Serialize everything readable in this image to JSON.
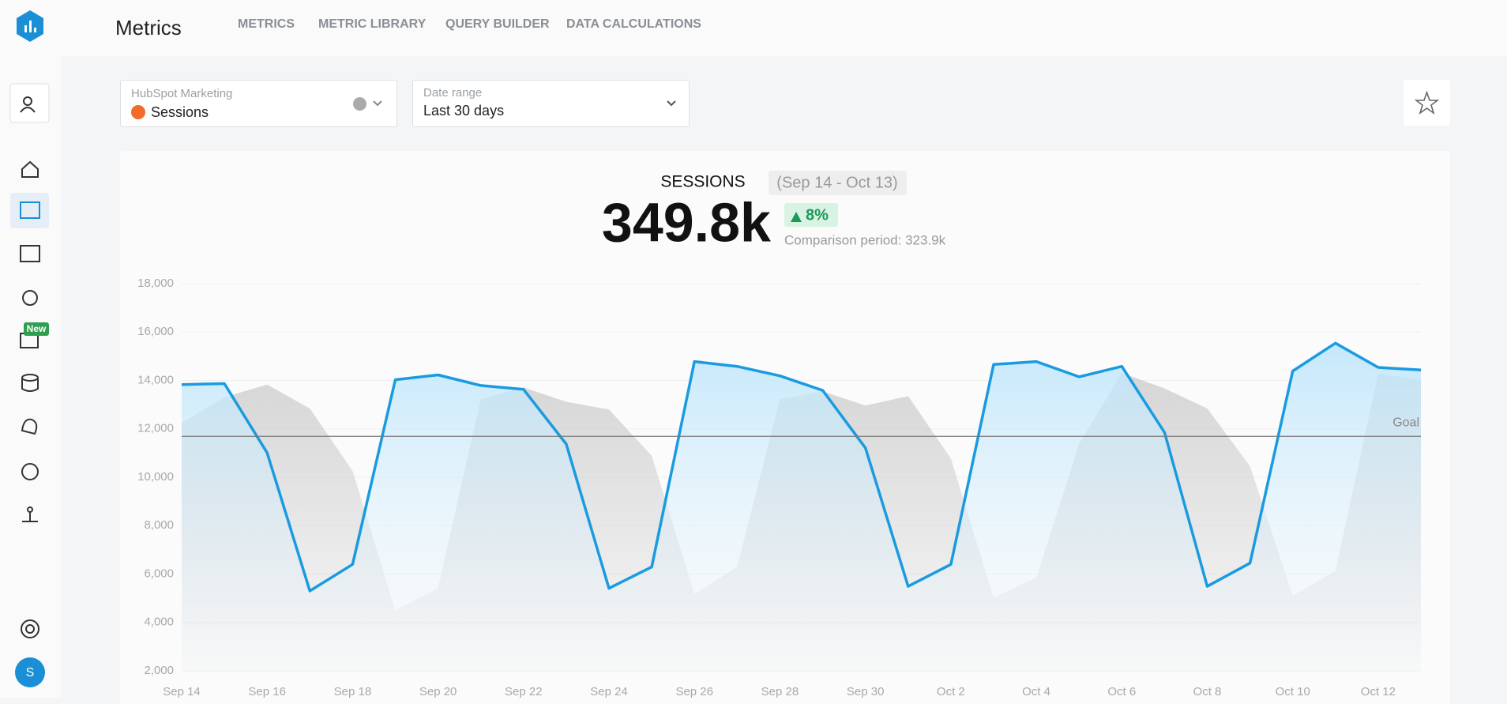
{
  "header": {
    "app_title": "Metrics",
    "nav": [
      "METRICS",
      "METRIC LIBRARY",
      "QUERY BUILDER",
      "DATA CALCULATIONS"
    ]
  },
  "sidebar": {
    "new_badge": "New",
    "avatar": "S"
  },
  "filters": {
    "source_label": "HubSpot Marketing",
    "metric": "Sessions",
    "date_label": "Date range",
    "date_value": "Last 30 days"
  },
  "summary": {
    "metric_name": "SESSIONS",
    "period": "(Sep 14 - Oct 13)",
    "value": "349.8k",
    "change": "8%",
    "comparison": "Comparison period: 323.9k"
  },
  "chart_data": {
    "type": "line",
    "categories": [
      "Sep 14",
      null,
      "Sep 16",
      null,
      "Sep 18",
      null,
      "Sep 20",
      null,
      "Sep 22",
      null,
      "Sep 24",
      null,
      "Sep 26",
      null,
      "Sep 28",
      null,
      "Sep 30",
      null,
      "Oct 2",
      null,
      "Oct 4",
      null,
      "Oct 6",
      null,
      "Oct 8",
      null,
      "Oct 10",
      null,
      "Oct 12",
      null
    ],
    "series": [
      {
        "kind": "area",
        "color": "#c9c9c9",
        "values": [
          12240,
          13310,
          13830,
          12840,
          10260,
          4500,
          5410,
          13230,
          13710,
          13120,
          12800,
          10890,
          5180,
          6290,
          13230,
          13550,
          12960,
          13350,
          10770,
          5020,
          5850,
          11370,
          14310,
          13670,
          12840,
          10460,
          5100,
          6130,
          14270,
          14030
        ]
      },
      {
        "kind": "line",
        "color": "#1a9be0",
        "values": [
          13830,
          13870,
          11010,
          5300,
          6400,
          14030,
          14230,
          13790,
          13630,
          11370,
          5410,
          6290,
          14780,
          14580,
          14190,
          13590,
          11210,
          5490,
          6400,
          14660,
          14780,
          14150,
          14580,
          11850,
          5490,
          6450,
          14390,
          15540,
          14540,
          14430
        ]
      }
    ],
    "goal": {
      "value": 11690,
      "label": "Goal"
    },
    "ylim": [
      2000,
      18000
    ],
    "yticks": [
      {
        "value": 2000,
        "label": "2,000"
      },
      {
        "value": 4000,
        "label": "4,000"
      },
      {
        "value": 6000,
        "label": "6,000"
      },
      {
        "value": 8000,
        "label": "8,000"
      },
      {
        "value": 10000,
        "label": "10,000"
      },
      {
        "value": 12000,
        "label": "12,000"
      },
      {
        "value": 14000,
        "label": "14,000"
      },
      {
        "value": 16000,
        "label": "16,000"
      },
      {
        "value": 18000,
        "label": "18,000"
      }
    ],
    "grid": true
  }
}
